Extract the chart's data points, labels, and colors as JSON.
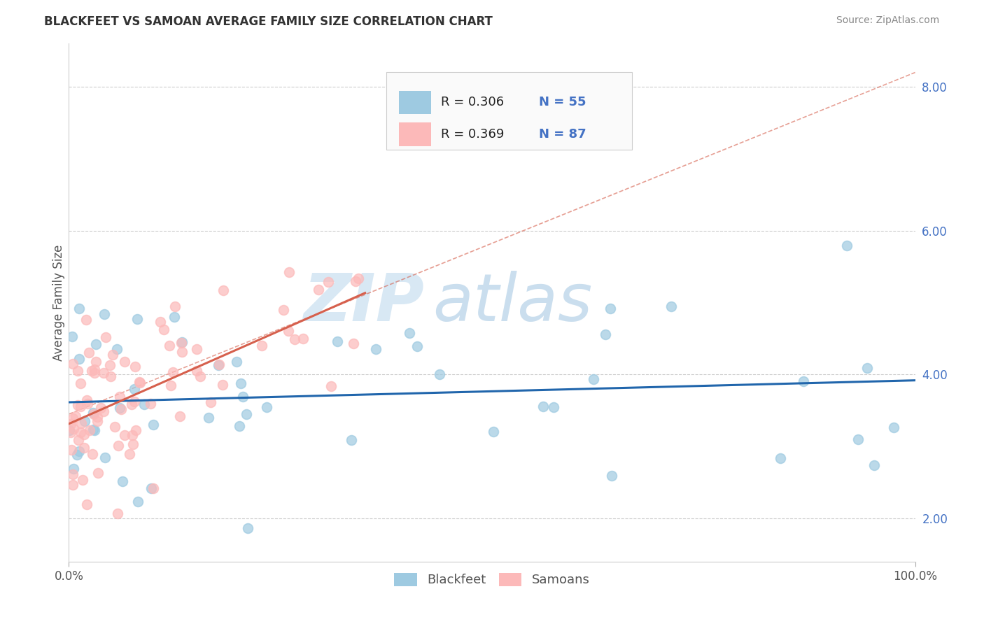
{
  "title": "BLACKFEET VS SAMOAN AVERAGE FAMILY SIZE CORRELATION CHART",
  "source": "Source: ZipAtlas.com",
  "ylabel": "Average Family Size",
  "xlim": [
    0,
    100
  ],
  "ylim": [
    1.4,
    8.6
  ],
  "yticks": [
    2.0,
    4.0,
    6.0,
    8.0
  ],
  "xtick_labels": [
    "0.0%",
    "100.0%"
  ],
  "blue_color": "#9ecae1",
  "pink_color": "#fcb9b9",
  "blue_line_color": "#2166ac",
  "pink_line_color": "#d6604d",
  "dashed_line_color": "#d6604d",
  "watermark_zip": "ZIP",
  "watermark_atlas": "atlas",
  "background_color": "#ffffff",
  "seed": 99,
  "blackfeet_n": 55,
  "samoan_n": 87,
  "title_fontsize": 12,
  "source_fontsize": 10,
  "axis_label_fontsize": 12,
  "tick_fontsize": 12,
  "legend_fontsize": 13
}
